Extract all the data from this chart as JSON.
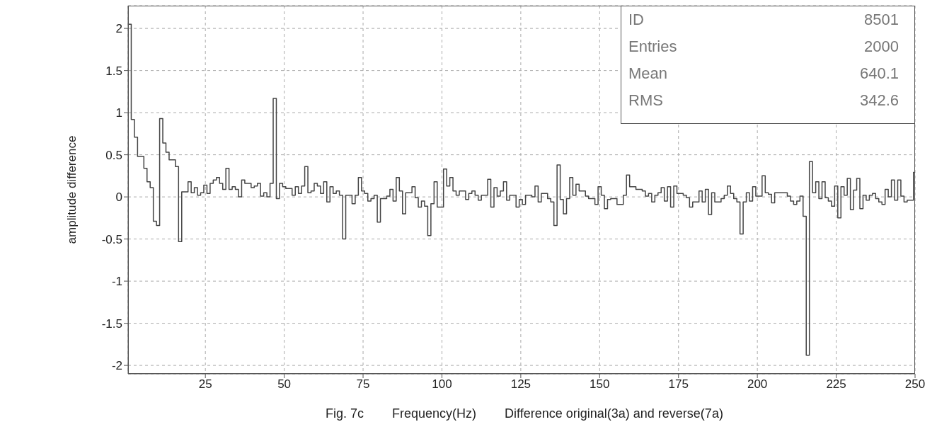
{
  "chart_data": {
    "type": "histogram",
    "xlabel": "Frequency(Hz)",
    "ylabel": "amplitude difference",
    "annotations": [
      "ID 8501",
      "Entries 2000",
      "Mean 640.1",
      "RMS 342.6",
      "Fig. 7c",
      "Difference original(3a) and reverse(7a)"
    ],
    "bins": [
      0.5,
      1.5,
      2.5,
      3.5,
      5.5,
      6.5,
      7.5,
      8.5,
      9.5,
      10.5,
      11.5,
      12.5,
      13.5,
      15.5,
      16.5,
      17.5,
      19.5,
      20.5,
      21.5,
      22.5,
      23.5,
      24.5,
      25.5,
      26.5,
      27.5,
      28.5,
      29.5,
      30.5,
      31.5,
      32.5,
      33.5,
      34.5,
      35.5,
      36.5,
      37.5,
      38.5,
      39.5,
      40.5,
      41.5,
      42.5,
      43.5,
      44.5,
      45.5,
      46.5,
      47.5,
      48.5,
      49.5,
      50.5,
      52.5,
      53.5,
      54.5,
      55.5,
      56.5,
      57.5,
      58.5,
      59.5,
      60.5,
      61.5,
      62.5,
      63.5,
      64.5,
      65.5,
      66.5,
      67.5,
      68.5,
      69.5,
      71.5,
      72.5,
      73.5,
      74.5,
      75.5,
      76.5,
      77.5,
      78.5,
      79.5,
      80.5,
      82.5,
      83.5,
      84.5,
      85.5,
      86.5,
      87.5,
      88.5,
      90.5,
      91.5,
      92.5,
      93.5,
      94.5,
      95.5,
      96.5,
      97.5,
      98.5,
      100.5,
      101.5,
      102.5,
      103.5,
      104.5,
      105.5,
      107.5,
      108.5,
      109.5,
      110.5,
      111.5,
      112.5,
      114.5,
      115.5,
      116.5,
      117.5,
      118.5,
      119.5,
      120.5,
      121.5,
      123.5,
      124.5,
      125.5,
      126.5,
      128.5,
      129.5,
      130.5,
      131.5,
      133.5,
      134.5,
      135.5,
      136.5,
      137.5,
      138.5,
      139.5,
      140.5,
      141.5,
      142.5,
      143.5,
      145.5,
      146.5,
      148.5,
      149.5,
      150.5,
      151.5,
      152.5,
      153.5,
      155.5,
      157.5,
      158.5,
      159.5,
      161.5,
      163.5,
      164.5,
      165.5,
      166.5,
      167.5,
      168.5,
      169.5,
      170.5,
      171.5,
      172.5,
      173.5,
      174.5,
      176.5,
      177.5,
      178.5,
      179.5,
      181.5,
      182.5,
      183.5,
      184.5,
      185.5,
      186.5,
      188.5,
      189.5,
      190.5,
      191.5,
      192.5,
      193.5,
      194.5,
      195.5,
      196.5,
      197.5,
      198.5,
      199.5,
      201.5,
      202.5,
      203.5,
      204.5,
      205.5,
      207.5,
      208.5,
      209.5,
      210.5,
      211.5,
      212.5,
      213.5,
      214.5,
      215.5,
      216.5,
      217.5,
      218.5,
      219.5,
      220.5,
      221.5,
      222.5,
      223.5,
      224.5,
      225.5,
      226.5,
      227.5,
      228.5,
      229.5,
      230.5,
      231.5,
      232.5,
      233.5,
      234.5,
      235.5,
      236.5,
      237.5,
      238.5,
      239.5,
      240.5,
      241.5,
      242.5,
      243.5,
      244.5,
      245.5,
      246.5,
      247.5,
      248.5,
      249.5,
      250
    ],
    "values": [
      2.05,
      0.92,
      0.71,
      0.48,
      0.34,
      0.18,
      0.11,
      -0.29,
      -0.34,
      0.93,
      0.64,
      0.53,
      0.44,
      0.36,
      -0.53,
      0.06,
      0.18,
      0.05,
      0.11,
      0.02,
      0.05,
      0.14,
      0.04,
      0.16,
      0.2,
      0.23,
      0.16,
      0.09,
      0.34,
      0.09,
      0.12,
      0.09,
      0,
      0.2,
      0.16,
      0.16,
      0.11,
      0.13,
      0.16,
      0.01,
      0.05,
      0,
      0.16,
      1.17,
      -0.02,
      0.16,
      0.12,
      0.1,
      0.02,
      0.12,
      0.04,
      0.13,
      0.36,
      0.05,
      0.07,
      0.16,
      0.13,
      0.04,
      0.18,
      -0.06,
      0.12,
      0.04,
      0.07,
      0.02,
      -0.5,
      0.02,
      -0.08,
      0.02,
      0.23,
      0.07,
      0.04,
      -0.05,
      -0.02,
      0.02,
      -0.3,
      -0.02,
      0.01,
      0.09,
      -0.05,
      0.23,
      0.07,
      -0.2,
      0.05,
      0.12,
      -0.01,
      -0.12,
      -0.05,
      -0.11,
      -0.46,
      -0.08,
      0.18,
      -0.12,
      0.33,
      0.13,
      0.23,
      0.07,
      0.02,
      0.07,
      -0.03,
      0.04,
      0.07,
      0.02,
      -0.04,
      0.02,
      0.21,
      -0.12,
      0.11,
      0.01,
      0.07,
      0.18,
      -0.04,
      0.02,
      -0.12,
      -0.03,
      -0.09,
      0.02,
      0,
      0.13,
      -0.06,
      0.04,
      -0.02,
      -0.06,
      -0.34,
      0.38,
      -0.03,
      -0.2,
      -0.02,
      0.23,
      0.02,
      0.15,
      0.07,
      0.01,
      -0.02,
      -0.09,
      0.12,
      0.02,
      -0.14,
      -0.03,
      -0.02,
      -0.09,
      0.02,
      0.26,
      0.12,
      0.09,
      0.07,
      0.01,
      0.04,
      -0.06,
      0.02,
      0.05,
      0.11,
      -0.05,
      0.12,
      -0.12,
      0.13,
      0.04,
      0.02,
      -0.01,
      -0.12,
      -0.06,
      0.07,
      -0.06,
      0.09,
      -0.21,
      0.05,
      -0.06,
      -0.02,
      0.02,
      0.13,
      0.04,
      -0.02,
      -0.06,
      -0.44,
      -0.06,
      0.05,
      -0.05,
      0.12,
      0.01,
      0.25,
      0.05,
      0.03,
      -0.07,
      0.05,
      0.05,
      0.05,
      0.01,
      -0.05,
      -0.09,
      -0.05,
      0.01,
      -0.23,
      -1.88,
      0.42,
      0.05,
      0.18,
      -0.02,
      0.18,
      -0.01,
      -0.05,
      -0.11,
      0.13,
      -0.25,
      0.12,
      0.02,
      0.22,
      -0.15,
      0.08,
      0.22,
      -0.14,
      0.02,
      -0.04,
      0.02,
      0.04,
      -0.02,
      -0.06,
      -0.09,
      0.09,
      0,
      0.2,
      -0.04,
      0.2,
      0.01,
      -0.06,
      -0.04,
      -0.04,
      0.29
    ],
    "color": "#444444",
    "xlim": [
      0.5,
      250
    ],
    "xticks": [
      25,
      50,
      75,
      100,
      125,
      150,
      175,
      200,
      225,
      250
    ],
    "ylim": [
      -2.1,
      2.27
    ],
    "yticks": [
      -2,
      -1.5,
      -1,
      -0.5,
      0,
      0.5,
      1,
      1.5,
      2
    ],
    "grid": true
  }
}
